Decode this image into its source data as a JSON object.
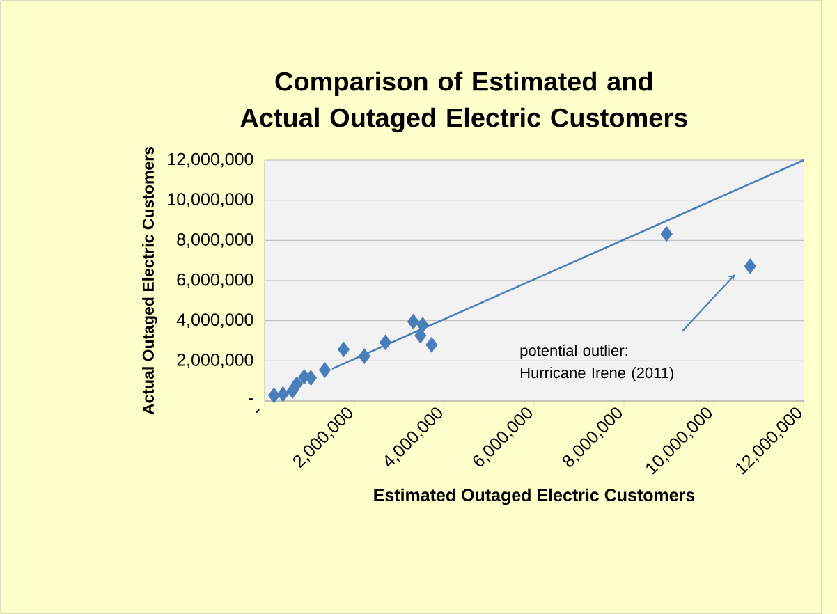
{
  "chart_data": {
    "type": "scatter",
    "title": "Comparison of Estimated and Actual Outaged Electric Customers",
    "xlabel": "Estimated Outaged Electric Customers",
    "ylabel": "Actual Outaged Electric Customers",
    "series": [
      {
        "color": "#4a7ebb",
        "marker": "diamond",
        "x": [
          210000,
          410000,
          620000,
          720000,
          880000,
          1030000,
          1340000,
          1760000,
          2220000,
          2690000,
          3310000,
          3520000,
          3470000,
          3720000,
          8950000,
          10810000
        ],
        "values": [
          280000,
          340000,
          510000,
          850000,
          1200000,
          1150000,
          1540000,
          2570000,
          2230000,
          2920000,
          3950000,
          3790000,
          3260000,
          2800000,
          8320000,
          6710000
        ]
      },
      {
        "type": "line",
        "color": "#4a7ebb",
        "marker": "none",
        "x": [
          1500000,
          12000000
        ],
        "values": [
          1600000,
          12000000
        ]
      }
    ],
    "xlim": [
      0,
      12000000
    ],
    "ylim": [
      0,
      12000000
    ],
    "xticks": [
      {
        "value": 0,
        "label": "-"
      },
      {
        "value": 2000000,
        "label": "2,000,000"
      },
      {
        "value": 4000000,
        "label": "4,000,000"
      },
      {
        "value": 6000000,
        "label": "6,000,000"
      },
      {
        "value": 8000000,
        "label": "8,000,000"
      },
      {
        "value": 10000000,
        "label": "10,000,000"
      },
      {
        "value": 12000000,
        "label": "12,000,000"
      }
    ],
    "yticks": [
      {
        "value": 0,
        "label": "-"
      },
      {
        "value": 2000000,
        "label": "2,000,000"
      },
      {
        "value": 4000000,
        "label": "4,000,000"
      },
      {
        "value": 6000000,
        "label": "6,000,000"
      },
      {
        "value": 8000000,
        "label": "8,000,000"
      },
      {
        "value": 10000000,
        "label": "10,000,000"
      },
      {
        "value": 12000000,
        "label": "12,000,000"
      }
    ],
    "grid": "y",
    "annotations": [
      "potential outlier: Hurricane Irene (2011)"
    ]
  }
}
